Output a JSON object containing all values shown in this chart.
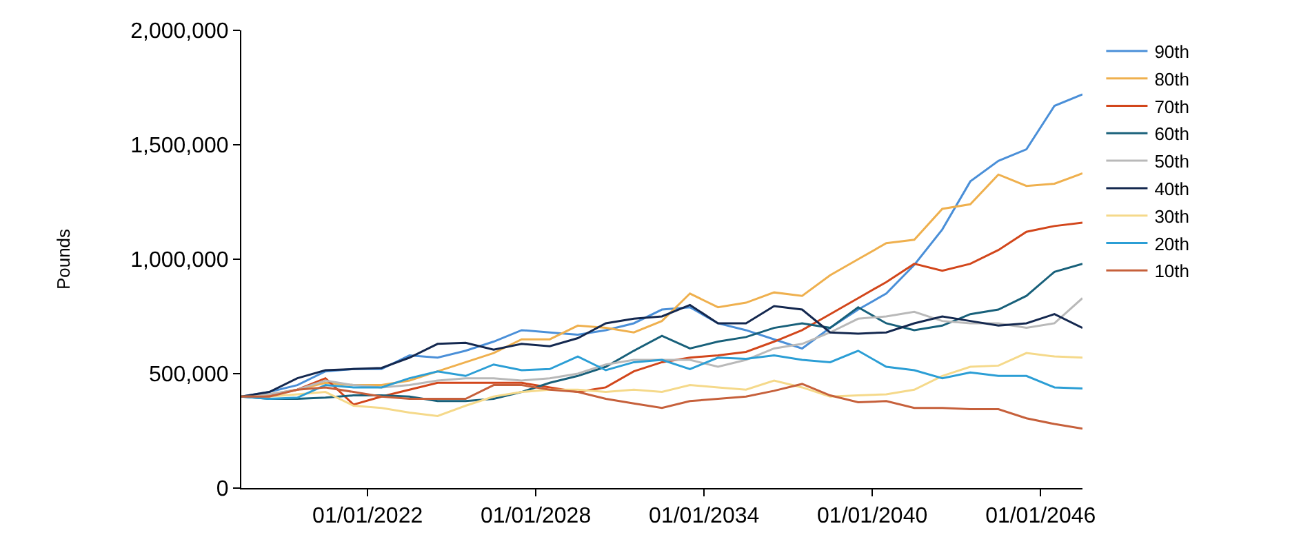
{
  "chart_data": {
    "type": "line",
    "ylabel": "Pounds",
    "x": [
      "2017-07-01",
      "2018-07-01",
      "2019-07-01",
      "2020-07-01",
      "2021-07-01",
      "2022-07-01",
      "2023-07-01",
      "2024-07-01",
      "2025-07-01",
      "2026-07-01",
      "2027-07-01",
      "2028-07-01",
      "2029-07-01",
      "2030-07-01",
      "2031-07-01",
      "2032-07-01",
      "2033-07-01",
      "2034-07-01",
      "2035-07-01",
      "2036-07-01",
      "2037-07-01",
      "2038-07-01",
      "2039-07-01",
      "2040-07-01",
      "2041-07-01",
      "2042-07-01",
      "2043-07-01",
      "2044-07-01",
      "2045-07-01",
      "2046-07-01",
      "2047-07-01"
    ],
    "xlim": [
      "2017-07-01",
      "2047-07-01"
    ],
    "xticks": [
      {
        "value": "2022-01-01",
        "label": "01/01/2022"
      },
      {
        "value": "2028-01-01",
        "label": "01/01/2028"
      },
      {
        "value": "2034-01-01",
        "label": "01/01/2034"
      },
      {
        "value": "2040-01-01",
        "label": "01/01/2040"
      },
      {
        "value": "2046-01-01",
        "label": "01/01/2046"
      }
    ],
    "ylim": [
      0,
      2000000
    ],
    "yticks": [
      {
        "value": 0,
        "label": "0"
      },
      {
        "value": 500000,
        "label": "500,000"
      },
      {
        "value": 1000000,
        "label": "1,000,000"
      },
      {
        "value": 1500000,
        "label": "1,500,000"
      },
      {
        "value": 2000000,
        "label": "2,000,000"
      }
    ],
    "legend": "top right",
    "marker": "none",
    "line_style": "solid",
    "series": [
      {
        "name": "90th",
        "color": "#4a8fd8",
        "values": [
          400000,
          420000,
          450000,
          510000,
          520000,
          520000,
          580000,
          570000,
          600000,
          640000,
          690000,
          680000,
          670000,
          690000,
          720000,
          780000,
          790000,
          720000,
          690000,
          650000,
          610000,
          700000,
          780000,
          850000,
          975000,
          1130000,
          1340000,
          1430000,
          1480000,
          1670000,
          1720000
        ]
      },
      {
        "name": "80th",
        "color": "#efb04e",
        "values": [
          400000,
          410000,
          430000,
          460000,
          450000,
          450000,
          470000,
          510000,
          550000,
          590000,
          650000,
          650000,
          710000,
          700000,
          680000,
          730000,
          850000,
          790000,
          810000,
          855000,
          840000,
          930000,
          1000000,
          1070000,
          1085000,
          1220000,
          1240000,
          1370000,
          1320000,
          1330000,
          1375000
        ]
      },
      {
        "name": "70th",
        "color": "#d2461b",
        "values": [
          400000,
          405000,
          430000,
          480000,
          365000,
          400000,
          430000,
          460000,
          460000,
          460000,
          460000,
          440000,
          420000,
          440000,
          510000,
          550000,
          570000,
          580000,
          595000,
          640000,
          690000,
          760000,
          830000,
          900000,
          980000,
          950000,
          980000,
          1040000,
          1120000,
          1145000,
          1160000
        ]
      },
      {
        "name": "60th",
        "color": "#18607a",
        "values": [
          400000,
          390000,
          390000,
          395000,
          405000,
          405000,
          400000,
          380000,
          380000,
          390000,
          420000,
          460000,
          490000,
          530000,
          600000,
          665000,
          610000,
          640000,
          660000,
          700000,
          720000,
          700000,
          790000,
          720000,
          690000,
          710000,
          760000,
          780000,
          840000,
          945000,
          980000
        ]
      },
      {
        "name": "50th",
        "color": "#b9b9b9",
        "values": [
          400000,
          410000,
          430000,
          470000,
          450000,
          440000,
          450000,
          470000,
          480000,
          480000,
          470000,
          480000,
          500000,
          540000,
          560000,
          560000,
          560000,
          530000,
          560000,
          610000,
          630000,
          680000,
          740000,
          750000,
          770000,
          730000,
          720000,
          720000,
          700000,
          720000,
          830000
        ]
      },
      {
        "name": "40th",
        "color": "#14284f",
        "values": [
          400000,
          420000,
          480000,
          515000,
          520000,
          525000,
          570000,
          630000,
          635000,
          605000,
          630000,
          620000,
          655000,
          720000,
          740000,
          750000,
          800000,
          720000,
          720000,
          795000,
          780000,
          680000,
          675000,
          680000,
          720000,
          750000,
          730000,
          710000,
          720000,
          760000,
          700000
        ]
      },
      {
        "name": "30th",
        "color": "#f5d98a",
        "values": [
          400000,
          400000,
          410000,
          420000,
          360000,
          350000,
          330000,
          315000,
          360000,
          400000,
          420000,
          430000,
          430000,
          420000,
          430000,
          420000,
          450000,
          440000,
          430000,
          470000,
          440000,
          400000,
          405000,
          410000,
          430000,
          490000,
          530000,
          535000,
          590000,
          575000,
          570000
        ]
      },
      {
        "name": "20th",
        "color": "#2b9ed5",
        "values": [
          400000,
          390000,
          395000,
          450000,
          440000,
          440000,
          480000,
          510000,
          490000,
          540000,
          515000,
          520000,
          575000,
          515000,
          550000,
          560000,
          520000,
          570000,
          565000,
          580000,
          560000,
          550000,
          600000,
          530000,
          515000,
          480000,
          505000,
          490000,
          490000,
          440000,
          435000
        ]
      },
      {
        "name": "10th",
        "color": "#c6603b",
        "values": [
          400000,
          400000,
          430000,
          440000,
          420000,
          400000,
          390000,
          390000,
          390000,
          450000,
          450000,
          430000,
          420000,
          390000,
          370000,
          350000,
          380000,
          390000,
          400000,
          425000,
          455000,
          405000,
          375000,
          380000,
          350000,
          350000,
          345000,
          345000,
          305000,
          280000,
          260000
        ]
      }
    ]
  }
}
